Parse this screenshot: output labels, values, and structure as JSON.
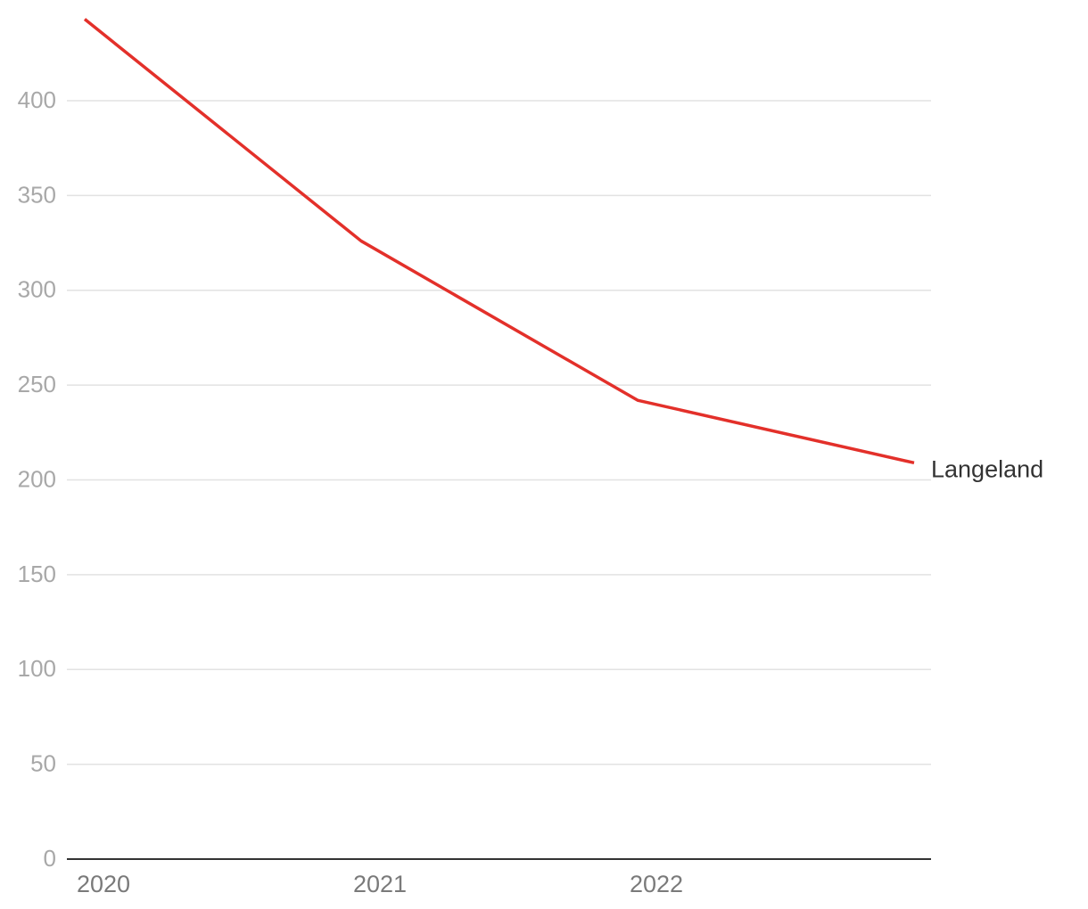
{
  "chart_data": {
    "type": "line",
    "categories": [
      "2020",
      "2021",
      "2022",
      null
    ],
    "series": [
      {
        "name": "Langeland",
        "color": "#e3302a",
        "values": [
          443,
          326,
          242,
          209
        ]
      }
    ],
    "ylim": [
      0,
      450
    ],
    "yticks": [
      0,
      50,
      100,
      150,
      200,
      250,
      300,
      350,
      400
    ],
    "grid": true
  }
}
